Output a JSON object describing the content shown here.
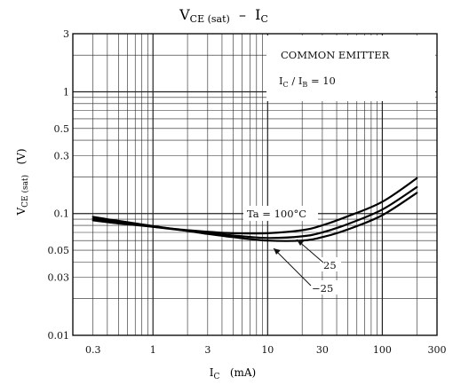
{
  "chart_data": {
    "type": "line",
    "title": {
      "main": "V",
      "main_sub": "CE (sat)",
      "dash": "–",
      "var": "I",
      "var_sub": "C"
    },
    "xlabel": {
      "main": "I",
      "sub": "C",
      "unit": "(mA)"
    },
    "ylabel": {
      "main": "V",
      "sub": "CE (sat)",
      "unit": "(V)"
    },
    "x_scale": "log",
    "y_scale": "log",
    "xlim": [
      0.2,
      300
    ],
    "ylim": [
      0.01,
      3
    ],
    "x_ticks": [
      "0.3",
      "1",
      "3",
      "10",
      "30",
      "100",
      "300"
    ],
    "x_tick_values": [
      0.3,
      1,
      3,
      10,
      30,
      100,
      300
    ],
    "y_ticks": [
      "0.01",
      "0.03",
      "0.05",
      "0.1",
      "0.3",
      "0.5",
      "1",
      "3"
    ],
    "y_tick_values": [
      0.01,
      0.03,
      0.05,
      0.1,
      0.3,
      0.5,
      1,
      3
    ],
    "grid": true,
    "legend_box": {
      "line1": "COMMON EMITTER",
      "line2_main": "I",
      "line2_sub1": "C",
      "line2_mid": " / I",
      "line2_sub2": "B",
      "line2_tail": " = 10"
    },
    "series": [
      {
        "name": "Ta = 100°C",
        "x": [
          0.3,
          0.5,
          1,
          2,
          3,
          5,
          10,
          20,
          30,
          50,
          100,
          200
        ],
        "y": [
          0.088,
          0.083,
          0.078,
          0.073,
          0.071,
          0.069,
          0.069,
          0.073,
          0.08,
          0.095,
          0.125,
          0.195
        ]
      },
      {
        "name": "25",
        "x": [
          0.3,
          0.5,
          1,
          2,
          3,
          5,
          10,
          20,
          30,
          50,
          100,
          200
        ],
        "y": [
          0.091,
          0.085,
          0.078,
          0.072,
          0.069,
          0.066,
          0.063,
          0.065,
          0.07,
          0.082,
          0.108,
          0.165
        ]
      },
      {
        "name": "−25",
        "x": [
          0.3,
          0.5,
          1,
          2,
          3,
          5,
          10,
          20,
          30,
          50,
          100,
          200
        ],
        "y": [
          0.094,
          0.087,
          0.079,
          0.072,
          0.068,
          0.064,
          0.06,
          0.06,
          0.064,
          0.074,
          0.097,
          0.148
        ]
      }
    ],
    "curve_labels": [
      "Ta = 100°C",
      "25",
      "−25"
    ]
  }
}
